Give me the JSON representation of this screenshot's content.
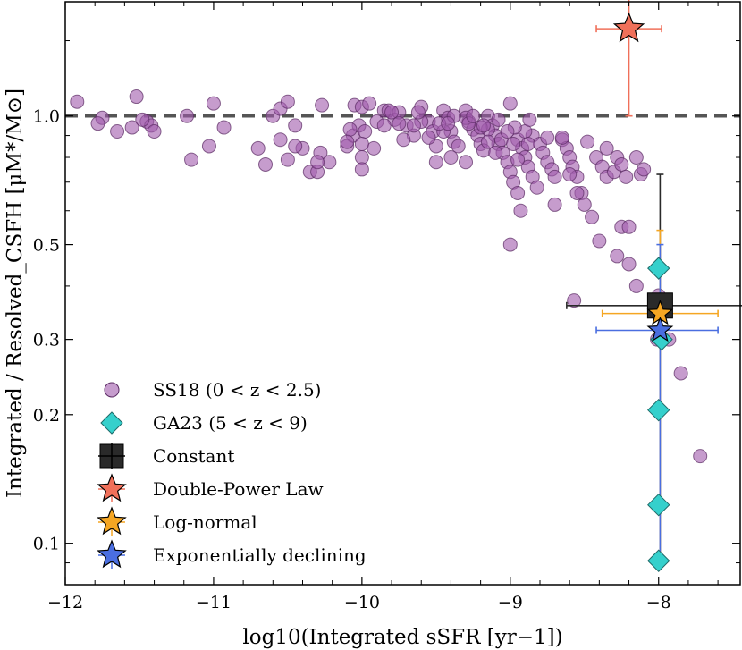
{
  "chart_data": {
    "type": "scatter",
    "xlabel": "log10(Integrated sSFR [yr−1])",
    "ylabel": "Integrated / Resolved_CSFH [μM*/M⊙]",
    "xlim": [
      -12,
      -7.45
    ],
    "ylim": [
      0.08,
      1.85
    ],
    "yscale": "log",
    "x_ticks": [
      -12,
      -11,
      -10,
      -9,
      -8
    ],
    "x_tick_labels": [
      "−12",
      "−11",
      "−10",
      "−9",
      "−8"
    ],
    "y_ticks": [
      0.1,
      0.2,
      0.3,
      0.5,
      1.0
    ],
    "y_tick_labels": [
      "0.1",
      "0.2",
      "0.3",
      "0.5",
      "1.0"
    ],
    "reference_line": {
      "y": 1.0,
      "style": "dashed",
      "color": "#555555"
    },
    "legend_position": "lower-left",
    "series": [
      {
        "name": "SS18 (0 < z < 2.5)",
        "marker": "circle",
        "color": "#a05aab",
        "points": [
          [
            -11.92,
            1.08
          ],
          [
            -11.75,
            0.99
          ],
          [
            -11.78,
            0.96
          ],
          [
            -11.52,
            1.11
          ],
          [
            -11.65,
            0.92
          ],
          [
            -11.55,
            0.94
          ],
          [
            -11.45,
            0.97
          ],
          [
            -11.42,
            0.95
          ],
          [
            -11.48,
            0.98
          ],
          [
            -11.4,
            0.92
          ],
          [
            -11.18,
            1.0
          ],
          [
            -11.15,
            0.79
          ],
          [
            -11.03,
            0.85
          ],
          [
            -11.0,
            1.07
          ],
          [
            -10.93,
            0.94
          ],
          [
            -10.7,
            0.84
          ],
          [
            -10.65,
            0.77
          ],
          [
            -10.6,
            1.0
          ],
          [
            -10.55,
            1.04
          ],
          [
            -10.55,
            0.88
          ],
          [
            -10.5,
            0.79
          ],
          [
            -10.45,
            0.95
          ],
          [
            -10.4,
            0.84
          ],
          [
            -10.35,
            0.74
          ],
          [
            -10.3,
            0.74
          ],
          [
            -10.28,
            0.82
          ],
          [
            -10.22,
            0.78
          ],
          [
            -10.5,
            1.08
          ],
          [
            -10.27,
            1.06
          ],
          [
            -10.05,
            1.06
          ],
          [
            -10.0,
            1.05
          ],
          [
            -9.95,
            1.07
          ],
          [
            -9.85,
            1.03
          ],
          [
            -10.1,
            0.85
          ],
          [
            -10.06,
            0.9
          ],
          [
            -10.02,
            0.95
          ],
          [
            -10.08,
            0.93
          ],
          [
            -10.1,
            0.87
          ],
          [
            -10.0,
            0.8
          ],
          [
            -10.0,
            0.75
          ],
          [
            -9.98,
            0.92
          ],
          [
            -9.9,
            0.97
          ],
          [
            -9.82,
            1.03
          ],
          [
            -9.78,
            0.98
          ],
          [
            -9.75,
            1.02
          ],
          [
            -9.7,
            0.95
          ],
          [
            -9.65,
            0.9
          ],
          [
            -9.6,
            1.05
          ],
          [
            -9.55,
            0.97
          ],
          [
            -9.52,
            0.92
          ],
          [
            -9.5,
            0.85
          ],
          [
            -9.45,
            1.03
          ],
          [
            -9.42,
            0.99
          ],
          [
            -9.4,
            0.92
          ],
          [
            -9.38,
            0.87
          ],
          [
            -9.35,
            0.85
          ],
          [
            -9.3,
            1.03
          ],
          [
            -9.28,
            0.97
          ],
          [
            -9.25,
            0.93
          ],
          [
            -9.22,
            0.9
          ],
          [
            -9.2,
            0.86
          ],
          [
            -9.18,
            0.83
          ],
          [
            -9.15,
            1.0
          ],
          [
            -9.12,
            0.95
          ],
          [
            -9.1,
            0.9
          ],
          [
            -9.08,
            0.86
          ],
          [
            -9.05,
            0.82
          ],
          [
            -9.02,
            0.78
          ],
          [
            -9.0,
            0.74
          ],
          [
            -8.98,
            0.7
          ],
          [
            -9.06,
            0.88
          ],
          [
            -8.95,
            0.66
          ],
          [
            -8.93,
            0.6
          ],
          [
            -8.95,
            0.88
          ],
          [
            -8.92,
            0.84
          ],
          [
            -8.9,
            0.8
          ],
          [
            -8.88,
            0.76
          ],
          [
            -8.85,
            0.72
          ],
          [
            -8.82,
            0.68
          ],
          [
            -8.85,
            0.9
          ],
          [
            -8.8,
            0.86
          ],
          [
            -8.78,
            0.82
          ],
          [
            -8.75,
            0.78
          ],
          [
            -8.72,
            0.75
          ],
          [
            -8.7,
            0.72
          ],
          [
            -8.65,
            0.88
          ],
          [
            -8.62,
            0.84
          ],
          [
            -8.6,
            0.8
          ],
          [
            -8.58,
            0.76
          ],
          [
            -8.55,
            0.72
          ],
          [
            -8.52,
            0.66
          ],
          [
            -8.5,
            0.62
          ],
          [
            -8.45,
            0.58
          ],
          [
            -8.42,
            0.8
          ],
          [
            -8.38,
            0.76
          ],
          [
            -8.35,
            0.72
          ],
          [
            -8.3,
            0.74
          ],
          [
            -8.28,
            0.8
          ],
          [
            -8.25,
            0.77
          ],
          [
            -8.22,
            0.72
          ],
          [
            -8.12,
            0.73
          ],
          [
            -8.15,
            0.8
          ],
          [
            -8.4,
            0.51
          ],
          [
            -8.25,
            0.55
          ],
          [
            -8.2,
            0.45
          ],
          [
            -8.0,
            0.38
          ],
          [
            -9.0,
            1.07
          ],
          [
            -9.3,
            0.99
          ],
          [
            -9.6,
            0.97
          ],
          [
            -9.8,
            1.02
          ],
          [
            -9.65,
            0.95
          ],
          [
            -9.45,
            0.92
          ],
          [
            -9.15,
            0.93
          ],
          [
            -9.2,
            0.94
          ],
          [
            -8.9,
            0.92
          ],
          [
            -8.6,
            0.73
          ],
          [
            -8.7,
            0.62
          ],
          [
            -8.55,
            0.66
          ],
          [
            -8.65,
            0.89
          ],
          [
            -8.75,
            0.89
          ],
          [
            -8.48,
            0.87
          ],
          [
            -8.35,
            0.84
          ],
          [
            -8.2,
            0.55
          ],
          [
            -8.1,
            0.75
          ],
          [
            -9.5,
            0.78
          ],
          [
            -9.4,
            0.8
          ],
          [
            -9.3,
            0.78
          ],
          [
            -9.1,
            0.82
          ],
          [
            -8.95,
            0.79
          ],
          [
            -9.15,
            0.87
          ],
          [
            -9.85,
            0.95
          ],
          [
            -9.92,
            0.84
          ],
          [
            -9.72,
            0.88
          ],
          [
            -9.55,
            0.89
          ],
          [
            -9.48,
            0.96
          ],
          [
            -9.38,
            1.0
          ],
          [
            -9.28,
            0.96
          ],
          [
            -9.08,
            0.98
          ],
          [
            -8.97,
            0.94
          ],
          [
            -8.87,
            0.98
          ],
          [
            -9.25,
            1.0
          ],
          [
            -9.62,
            1.02
          ],
          [
            -9.75,
            0.96
          ],
          [
            -9.42,
            0.96
          ],
          [
            -9.18,
            0.95
          ],
          [
            -9.02,
            0.92
          ],
          [
            -8.98,
            0.86
          ],
          [
            -8.88,
            0.86
          ],
          [
            -8.57,
            0.37
          ],
          [
            -8.28,
            0.47
          ],
          [
            -8.15,
            0.4
          ],
          [
            -8.01,
            0.3
          ],
          [
            -7.93,
            0.3
          ],
          [
            -7.85,
            0.25
          ],
          [
            -7.72,
            0.16
          ],
          [
            -9.0,
            0.5
          ],
          [
            -10.0,
            0.86
          ],
          [
            -10.45,
            0.85
          ],
          [
            -10.3,
            0.78
          ]
        ]
      },
      {
        "name": "GA23 (5 < z < 9)",
        "marker": "diamond",
        "color": "#35d0cc",
        "points": [
          [
            -8.0,
            0.44
          ],
          [
            -7.98,
            0.3
          ],
          [
            -8.0,
            0.205
          ],
          [
            -8.0,
            0.123
          ],
          [
            -8.0,
            0.091
          ]
        ]
      },
      {
        "name": "Constant",
        "marker": "square",
        "color": "#2a2a2a",
        "points": [
          [
            -7.99,
            0.36
          ]
        ],
        "xerr": [
          [
            -8.62,
            -7.43
          ]
        ],
        "yerr": [
          [
            0.09,
            0.73
          ]
        ]
      },
      {
        "name": "Double-Power Law",
        "marker": "star",
        "color": "#f0705a",
        "points": [
          [
            -8.2,
            1.6
          ]
        ],
        "xerr": [
          [
            -8.42,
            -7.98
          ]
        ],
        "yerr": [
          [
            1.0,
            1.92
          ]
        ]
      },
      {
        "name": "Log-normal",
        "marker": "star",
        "color": "#f5a623",
        "points": [
          [
            -7.99,
            0.345
          ]
        ],
        "xerr": [
          [
            -8.38,
            -7.6
          ]
        ],
        "yerr": [
          [
            0.09,
            0.54
          ]
        ]
      },
      {
        "name": "Exponentially declining",
        "marker": "star",
        "color": "#4a6ee0",
        "points": [
          [
            -7.99,
            0.315
          ]
        ],
        "xerr": [
          [
            -8.42,
            -7.6
          ]
        ],
        "yerr": [
          [
            0.09,
            0.5
          ]
        ]
      }
    ]
  }
}
